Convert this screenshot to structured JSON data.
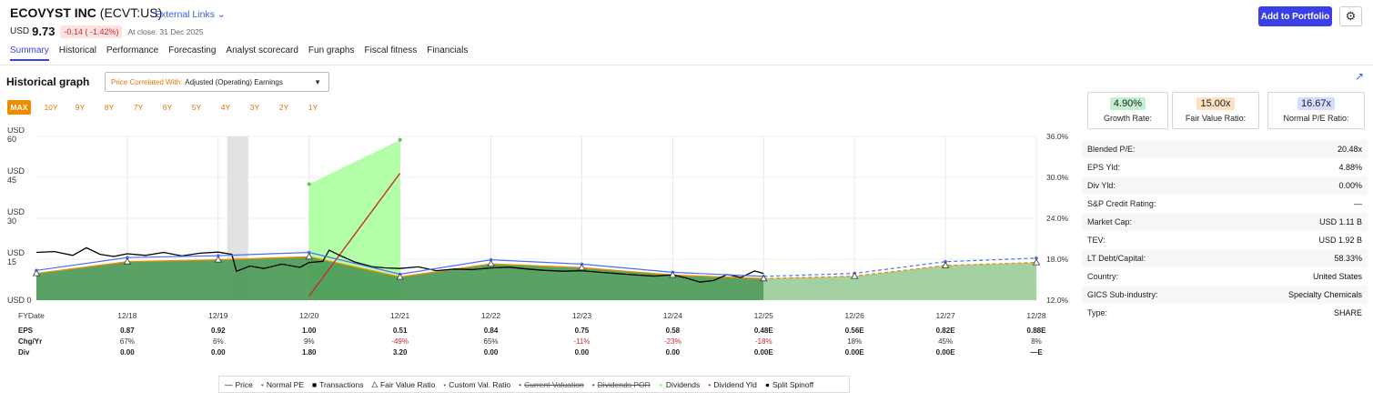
{
  "header": {
    "company": "ECOVYST INC",
    "ticker": "(ECVT:US)",
    "external_links": "External Links",
    "currency": "USD",
    "price": "9.73",
    "change": "-0.14 ( -1.42%)",
    "close_note": "At close: 31 Dec 2025",
    "add_portfolio": "Add to Portfolio",
    "settings_icon": "gear-icon"
  },
  "tabs": [
    "Summary",
    "Historical",
    "Performance",
    "Forecasting",
    "Analyst scorecard",
    "Fun graphs",
    "Fiscal fitness",
    "Financials"
  ],
  "graph_panel": {
    "title": "Historical graph",
    "select_label": "Price Correlated With:",
    "select_value": "Adjusted (Operating) Earnings",
    "ranges": [
      "MAX",
      "10Y",
      "9Y",
      "8Y",
      "7Y",
      "6Y",
      "5Y",
      "4Y",
      "3Y",
      "2Y",
      "1Y"
    ],
    "expand_icon": "external-link-icon"
  },
  "cards": [
    {
      "value": "4.90%",
      "label": "Growth Rate:",
      "color": "#c3f0cf"
    },
    {
      "value": "15.00x",
      "label": "Fair Value Ratio:",
      "color": "#ffe0c2"
    },
    {
      "value": "16.67x",
      "label": "Normal P/E Ratio:",
      "color": "#d6dcff"
    }
  ],
  "stats": [
    {
      "k": "Blended P/E:",
      "v": "20.48x"
    },
    {
      "k": "EPS Yld:",
      "v": "4.88%"
    },
    {
      "k": "Div Yld:",
      "v": "0.00%"
    },
    {
      "k": "S&P Credit Rating:",
      "v": "—"
    },
    {
      "k": "Market Cap:",
      "v": "USD 1.11 B"
    },
    {
      "k": "TEV:",
      "v": "USD 1.92 B"
    },
    {
      "k": "LT Debt/Capital:",
      "v": "58.33%"
    },
    {
      "k": "Country:",
      "v": "United States"
    },
    {
      "k": "GICS Sub-industry:",
      "v": "Specialty Chemicals"
    },
    {
      "k": "Type:",
      "v": "SHARE"
    }
  ],
  "chart_data": {
    "type": "line",
    "left_axis": {
      "ticks": [
        {
          "label": "USD\n60",
          "value": 60
        },
        {
          "label": "USD\n45",
          "value": 45
        },
        {
          "label": "USD\n30",
          "value": 30
        },
        {
          "label": "USD\n15",
          "value": 15
        },
        {
          "label": "USD 0",
          "value": 0
        }
      ],
      "ylim": [
        0,
        60
      ]
    },
    "right_axis": {
      "ticks": [
        "36.0%",
        "30.0%",
        "24.0%",
        "18.0%",
        "12.0%"
      ],
      "ylim": [
        12,
        36
      ]
    },
    "fy_label": "FYDate",
    "x": [
      "12/18",
      "12/19",
      "12/20",
      "12/21",
      "12/22",
      "12/23",
      "12/24",
      "12/25",
      "12/26",
      "12/27",
      "12/28"
    ],
    "rows": [
      {
        "label": "EPS",
        "values": [
          "0.87",
          "0.92",
          "1.00",
          "0.51",
          "0.84",
          "0.75",
          "0.58",
          "0.48E",
          "0.56E",
          "0.82E",
          "0.88E"
        ]
      },
      {
        "label": "Chg/Yr",
        "values": [
          "67%",
          "6%",
          "9%",
          "-49%",
          "65%",
          "-11%",
          "-23%",
          "-18%",
          "18%",
          "45%",
          "8%"
        ]
      },
      {
        "label": "Div",
        "values": [
          "0.00",
          "0.00",
          "1.80",
          "3.20",
          "0.00",
          "0.00",
          "0.00",
          "0.00E",
          "0.00E",
          "0.00E",
          "—E"
        ]
      }
    ],
    "normal_pe": [
      {
        "x": 2017.0,
        "y": 10.9
      },
      {
        "x": 2018.0,
        "y": 15.6
      },
      {
        "x": 2019.0,
        "y": 16.3
      },
      {
        "x": 2020.0,
        "y": 17.5
      },
      {
        "x": 2021.0,
        "y": 9.5
      },
      {
        "x": 2022.0,
        "y": 14.8
      },
      {
        "x": 2023.0,
        "y": 13.2
      },
      {
        "x": 2024.0,
        "y": 10.2
      },
      {
        "x": 2025.0,
        "y": 8.7
      },
      {
        "x": 2026.0,
        "y": 9.8
      },
      {
        "x": 2027.0,
        "y": 14.1
      },
      {
        "x": 2028.0,
        "y": 15.4
      }
    ],
    "fair_value": [
      {
        "x": 2017.0,
        "y": 9.8
      },
      {
        "x": 2018.0,
        "y": 14.1
      },
      {
        "x": 2019.0,
        "y": 14.8
      },
      {
        "x": 2020.0,
        "y": 15.9
      },
      {
        "x": 2021.0,
        "y": 8.5
      },
      {
        "x": 2022.0,
        "y": 13.3
      },
      {
        "x": 2023.0,
        "y": 11.9
      },
      {
        "x": 2024.0,
        "y": 9.2
      },
      {
        "x": 2025.0,
        "y": 7.9
      },
      {
        "x": 2026.0,
        "y": 8.8
      },
      {
        "x": 2027.0,
        "y": 12.7
      },
      {
        "x": 2028.0,
        "y": 13.8
      }
    ],
    "price": [
      {
        "x": 2017.0,
        "y": 17.5
      },
      {
        "x": 2017.2,
        "y": 17.8
      },
      {
        "x": 2017.4,
        "y": 16.4
      },
      {
        "x": 2017.55,
        "y": 19.2
      },
      {
        "x": 2017.7,
        "y": 16.8
      },
      {
        "x": 2017.85,
        "y": 16.0
      },
      {
        "x": 2018.0,
        "y": 17.0
      },
      {
        "x": 2018.2,
        "y": 16.4
      },
      {
        "x": 2018.4,
        "y": 17.5
      },
      {
        "x": 2018.6,
        "y": 16.2
      },
      {
        "x": 2018.8,
        "y": 17.2
      },
      {
        "x": 2019.0,
        "y": 17.6
      },
      {
        "x": 2019.15,
        "y": 16.8
      },
      {
        "x": 2019.2,
        "y": 10.6
      },
      {
        "x": 2019.35,
        "y": 12.5
      },
      {
        "x": 2019.5,
        "y": 11.6
      },
      {
        "x": 2019.7,
        "y": 13.2
      },
      {
        "x": 2019.9,
        "y": 12.0
      },
      {
        "x": 2020.0,
        "y": 13.8
      },
      {
        "x": 2020.15,
        "y": 14.2
      },
      {
        "x": 2020.22,
        "y": 18.3
      },
      {
        "x": 2020.35,
        "y": 16.2
      },
      {
        "x": 2020.5,
        "y": 14.0
      },
      {
        "x": 2020.7,
        "y": 12.2
      },
      {
        "x": 2020.85,
        "y": 11.8
      },
      {
        "x": 2021.0,
        "y": 11.6
      },
      {
        "x": 2021.2,
        "y": 12.2
      },
      {
        "x": 2021.4,
        "y": 10.8
      },
      {
        "x": 2021.6,
        "y": 11.4
      },
      {
        "x": 2021.8,
        "y": 11.2
      },
      {
        "x": 2022.0,
        "y": 11.8
      },
      {
        "x": 2022.2,
        "y": 12.1
      },
      {
        "x": 2022.4,
        "y": 11.4
      },
      {
        "x": 2022.6,
        "y": 10.9
      },
      {
        "x": 2022.8,
        "y": 10.6
      },
      {
        "x": 2023.0,
        "y": 10.8
      },
      {
        "x": 2023.2,
        "y": 10.2
      },
      {
        "x": 2023.4,
        "y": 9.7
      },
      {
        "x": 2023.6,
        "y": 9.2
      },
      {
        "x": 2023.8,
        "y": 8.8
      },
      {
        "x": 2024.0,
        "y": 9.3
      },
      {
        "x": 2024.15,
        "y": 8.1
      },
      {
        "x": 2024.3,
        "y": 6.6
      },
      {
        "x": 2024.45,
        "y": 7.2
      },
      {
        "x": 2024.6,
        "y": 9.4
      },
      {
        "x": 2024.75,
        "y": 8.3
      },
      {
        "x": 2024.9,
        "y": 10.7
      },
      {
        "x": 2025.0,
        "y": 9.73
      }
    ],
    "dividends_band": {
      "x": [
        2020.0,
        2021.0
      ],
      "bottom": [
        0,
        0
      ],
      "top_pct": [
        29.0,
        35.5
      ]
    },
    "dividend_yield": [
      {
        "x": 2020.0,
        "y": 12.6
      },
      {
        "x": 2021.0,
        "y": 30.6
      }
    ],
    "split_spinoff_shading": {
      "x_start": 2019.1,
      "x_end": 2019.33
    },
    "legend": [
      "Price",
      "Normal PE",
      "Transactions",
      "Fair Value Ratio",
      "Custom Val. Ratio",
      "Current Valuation",
      "Dividends POR",
      "Dividends",
      "Dividend Yld",
      "Split Spinoff"
    ],
    "colors": {
      "price": "#000000",
      "normal_pe": "#4c6ef5",
      "fair_value_fill": "#4b9a57",
      "fair_value_line": "#f08c00",
      "forecast_fill": "#9fcf9c",
      "dividends": "#aaff9e",
      "dividend_yld": "#c92a2a",
      "custom_val": "#e64980"
    }
  }
}
